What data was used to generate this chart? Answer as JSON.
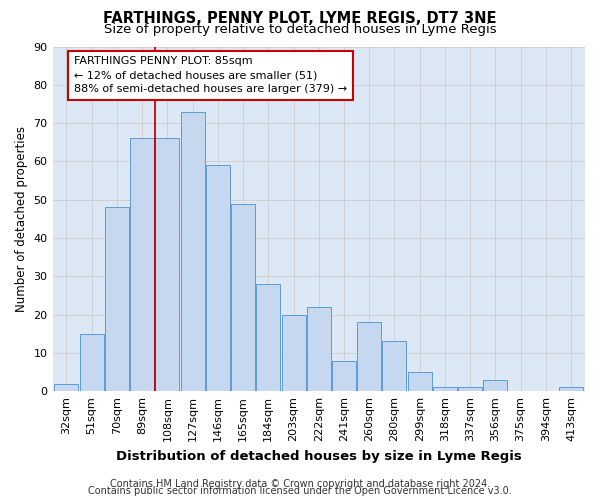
{
  "title": "FARTHINGS, PENNY PLOT, LYME REGIS, DT7 3NE",
  "subtitle": "Size of property relative to detached houses in Lyme Regis",
  "xlabel": "Distribution of detached houses by size in Lyme Regis",
  "ylabel": "Number of detached properties",
  "categories": [
    "32sqm",
    "51sqm",
    "70sqm",
    "89sqm",
    "108sqm",
    "127sqm",
    "146sqm",
    "165sqm",
    "184sqm",
    "203sqm",
    "222sqm",
    "241sqm",
    "260sqm",
    "280sqm",
    "299sqm",
    "318sqm",
    "337sqm",
    "356sqm",
    "375sqm",
    "394sqm",
    "413sqm"
  ],
  "values": [
    2,
    15,
    48,
    66,
    66,
    73,
    59,
    49,
    28,
    20,
    22,
    8,
    18,
    13,
    5,
    1,
    1,
    3,
    0,
    0,
    1
  ],
  "bar_color": "#c5d8f0",
  "bar_edge_color": "#5b9bd5",
  "vline_x": 3.5,
  "vline_color": "#cc0000",
  "annotation_text": "FARTHINGS PENNY PLOT: 85sqm\n← 12% of detached houses are smaller (51)\n88% of semi-detached houses are larger (379) →",
  "annotation_box_color": "#ffffff",
  "annotation_box_edge_color": "#cc0000",
  "ylim": [
    0,
    90
  ],
  "yticks": [
    0,
    10,
    20,
    30,
    40,
    50,
    60,
    70,
    80,
    90
  ],
  "grid_color": "#cccccc",
  "bg_color": "#dde8f6",
  "fig_bg_color": "#ffffff",
  "footer_line1": "Contains HM Land Registry data © Crown copyright and database right 2024.",
  "footer_line2": "Contains public sector information licensed under the Open Government Licence v3.0.",
  "title_fontsize": 10.5,
  "subtitle_fontsize": 9.5,
  "ylabel_fontsize": 8.5,
  "xlabel_fontsize": 9.5,
  "tick_fontsize": 8,
  "annotation_fontsize": 8,
  "footer_fontsize": 7
}
